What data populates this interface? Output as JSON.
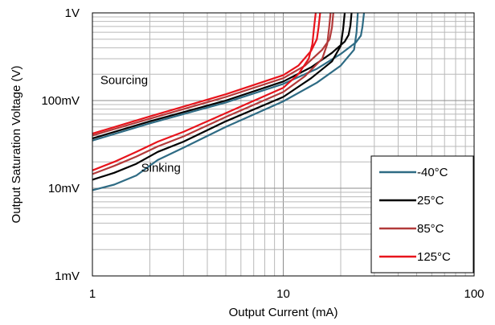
{
  "chart_data": {
    "type": "line",
    "title": "",
    "xlabel": "Output Current (mA)",
    "ylabel": "Output Saturation Voltage (V)",
    "x_scale": "log",
    "y_scale": "log",
    "xlim": [
      1,
      100
    ],
    "ylim": [
      0.001,
      1
    ],
    "x_ticks": [
      {
        "value": 1,
        "label": "1"
      },
      {
        "value": 10,
        "label": "10"
      },
      {
        "value": 100,
        "label": "100"
      }
    ],
    "y_ticks": [
      {
        "value": 0.001,
        "label": "1mV"
      },
      {
        "value": 0.01,
        "label": "10mV"
      },
      {
        "value": 0.1,
        "label": "100mV"
      },
      {
        "value": 1,
        "label": "1V"
      }
    ],
    "grid": true,
    "legend_position": "bottom-right",
    "annotations": [
      {
        "text": "Sourcing",
        "x": 1.1,
        "y": 0.155
      },
      {
        "text": "Sinking",
        "x": 1.8,
        "y": 0.0155
      }
    ],
    "series": [
      {
        "name": "-40°C",
        "color": "#2e6b84",
        "curves": [
          {
            "label": "Sourcing",
            "x": [
              1,
              2,
              5,
              10,
              15,
              20,
              24,
              25.5,
              26,
              26.5
            ],
            "y": [
              0.035,
              0.055,
              0.095,
              0.155,
              0.23,
              0.34,
              0.46,
              0.55,
              0.7,
              1.0
            ]
          },
          {
            "label": "Sinking",
            "x": [
              1,
              1.3,
              1.7,
              2.2,
              3,
              5,
              10,
              15,
              20,
              23.5,
              24.2,
              24.6
            ],
            "y": [
              0.0095,
              0.011,
              0.014,
              0.021,
              0.029,
              0.05,
              0.098,
              0.16,
              0.25,
              0.38,
              0.6,
              1.0
            ]
          }
        ]
      },
      {
        "name": "25°C",
        "color": "#000000",
        "curves": [
          {
            "label": "Sourcing",
            "x": [
              1,
              2,
              5,
              10,
              14,
              18,
              21,
              22,
              22.5,
              22.8
            ],
            "y": [
              0.037,
              0.058,
              0.1,
              0.165,
              0.24,
              0.35,
              0.47,
              0.56,
              0.72,
              1.0
            ]
          },
          {
            "label": "Sinking",
            "x": [
              1,
              1.3,
              1.7,
              2.2,
              3,
              5,
              10,
              14,
              18,
              20,
              20.6,
              21
            ],
            "y": [
              0.0125,
              0.015,
              0.019,
              0.026,
              0.034,
              0.058,
              0.11,
              0.18,
              0.28,
              0.42,
              0.65,
              1.0
            ]
          }
        ]
      },
      {
        "name": "85°C",
        "color": "#b23a3a",
        "curves": [
          {
            "label": "Sourcing",
            "x": [
              1,
              2,
              5,
              10,
              13,
              16,
              17.5,
              18,
              18.3
            ],
            "y": [
              0.04,
              0.062,
              0.11,
              0.18,
              0.25,
              0.38,
              0.5,
              0.68,
              1.0
            ]
          },
          {
            "label": "Sinking",
            "x": [
              1,
              1.3,
              1.7,
              2.2,
              3,
              5,
              10,
              13,
              16,
              17,
              17.4,
              17.7
            ],
            "y": [
              0.0145,
              0.018,
              0.023,
              0.03,
              0.039,
              0.065,
              0.125,
              0.19,
              0.3,
              0.44,
              0.68,
              1.0
            ]
          }
        ]
      },
      {
        "name": "125°C",
        "color": "#e8141c",
        "curves": [
          {
            "label": "Sourcing",
            "x": [
              1,
              2,
              5,
              10,
              12,
              14,
              15,
              15.3,
              15.6
            ],
            "y": [
              0.042,
              0.066,
              0.118,
              0.195,
              0.25,
              0.37,
              0.5,
              0.68,
              1.0
            ]
          },
          {
            "label": "Sinking",
            "x": [
              1,
              1.3,
              1.7,
              2.2,
              3,
              5,
              10,
              12,
              13.6,
              14.2,
              14.5,
              14.8
            ],
            "y": [
              0.016,
              0.02,
              0.026,
              0.034,
              0.044,
              0.072,
              0.14,
              0.2,
              0.3,
              0.44,
              0.68,
              1.0
            ]
          }
        ]
      }
    ]
  }
}
